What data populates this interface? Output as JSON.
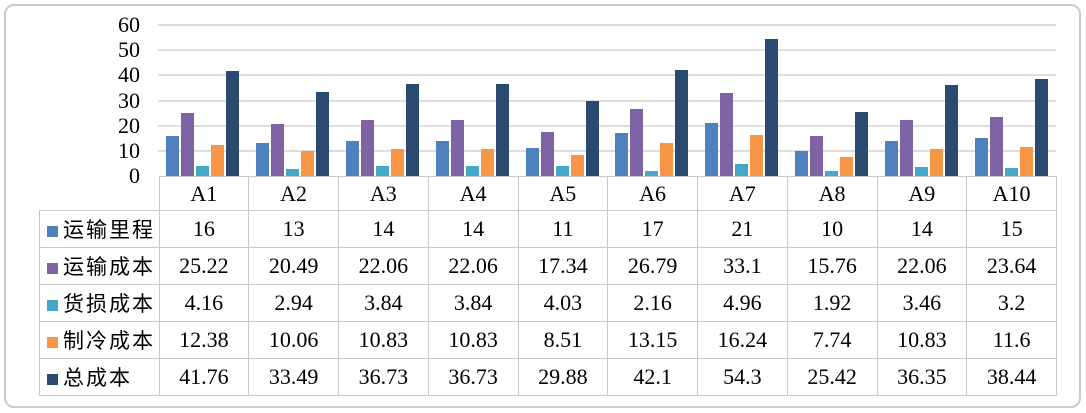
{
  "chart_data": {
    "type": "bar",
    "title": "",
    "xlabel": "",
    "ylabel": "",
    "ylim": [
      0,
      60
    ],
    "yticks": [
      0,
      10,
      20,
      30,
      40,
      50,
      60
    ],
    "grid": true,
    "legend_position": "table-left",
    "categories": [
      "A1",
      "A2",
      "A3",
      "A4",
      "A5",
      "A6",
      "A7",
      "A8",
      "A9",
      "A10"
    ],
    "series": [
      {
        "key": "transport-mileage",
        "name": "运输里程",
        "color": "#4e81bd",
        "values": [
          16,
          13,
          14,
          14,
          11,
          17,
          21,
          10,
          14,
          15
        ]
      },
      {
        "key": "transport-cost",
        "name": "运输成本",
        "color": "#7e63a5",
        "values": [
          25.22,
          20.49,
          22.06,
          22.06,
          17.34,
          26.79,
          33.1,
          15.76,
          22.06,
          23.64
        ]
      },
      {
        "key": "damage-cost",
        "name": "货损成本",
        "color": "#44a8c8",
        "values": [
          4.16,
          2.94,
          3.84,
          3.84,
          4.03,
          2.16,
          4.96,
          1.92,
          3.46,
          3.2
        ]
      },
      {
        "key": "cooling-cost",
        "name": "制冷成本",
        "color": "#f79646",
        "values": [
          12.38,
          10.06,
          10.83,
          10.83,
          8.51,
          13.15,
          16.24,
          7.74,
          10.83,
          11.6
        ]
      },
      {
        "key": "total-cost",
        "name": "总成本",
        "color": "#2a4a70",
        "values": [
          41.76,
          33.49,
          36.73,
          36.73,
          29.88,
          42.1,
          54.3,
          25.42,
          36.35,
          38.44
        ]
      }
    ]
  }
}
